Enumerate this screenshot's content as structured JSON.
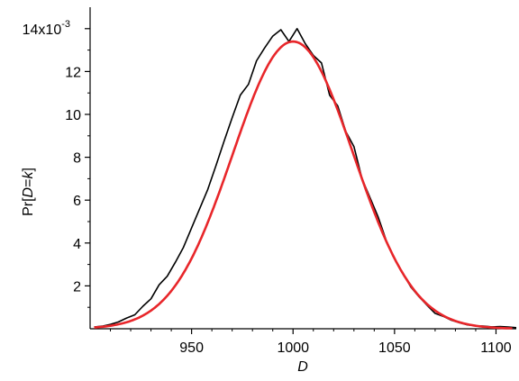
{
  "chart_data": {
    "type": "line",
    "xlabel": "D",
    "ylabel_prefix": "Pr[",
    "ylabel_var": "D",
    "ylabel_mid": "=",
    "ylabel_k": "k",
    "ylabel_suffix": "]",
    "ylim": [
      0,
      0.015
    ],
    "xlim": [
      900,
      1110
    ],
    "x_ticks": [
      950,
      1000,
      1050,
      1100
    ],
    "x_tick_labels": [
      "950",
      "1000",
      "1050",
      "1100"
    ],
    "y_ticks": [
      0.002,
      0.004,
      0.006,
      0.008,
      0.01,
      0.012,
      0.014
    ],
    "y_tick_labels": [
      "2",
      "4",
      "6",
      "8",
      "10",
      "12",
      "14x10"
    ],
    "y_exponent": "-3",
    "grid": false,
    "series": [
      {
        "color": "#000000",
        "style": "noisy empirical distribution",
        "x": [
          902,
          906,
          910,
          914,
          918,
          922,
          926,
          930,
          934,
          938,
          942,
          946,
          950,
          954,
          958,
          962,
          966,
          970,
          974,
          978,
          982,
          986,
          990,
          994,
          998,
          1002,
          1006,
          1010,
          1014,
          1018,
          1022,
          1026,
          1030,
          1034,
          1038,
          1042,
          1046,
          1050,
          1054,
          1058,
          1062,
          1066,
          1070,
          1074,
          1078,
          1082,
          1086,
          1090,
          1094,
          1098,
          1102,
          1106,
          1110
        ],
        "values": [
          8e-05,
          0.00012,
          0.0002,
          0.00032,
          0.0005,
          0.00065,
          0.00105,
          0.0014,
          0.00205,
          0.00245,
          0.0031,
          0.0038,
          0.0047,
          0.0056,
          0.0065,
          0.0076,
          0.00875,
          0.00985,
          0.0109,
          0.0114,
          0.0125,
          0.0131,
          0.01365,
          0.01395,
          0.0134,
          0.014,
          0.0133,
          0.01275,
          0.0124,
          0.0109,
          0.0104,
          0.0092,
          0.0085,
          0.007,
          0.0061,
          0.0052,
          0.0041,
          0.00325,
          0.0026,
          0.00195,
          0.0015,
          0.0011,
          0.00072,
          0.00058,
          0.0004,
          0.00028,
          0.00018,
          0.00014,
          0.00012,
          9e-05,
          0.0001,
          8e-05,
          5e-05
        ]
      },
      {
        "color": "#e8262a",
        "style": "fitted normal curve",
        "mean": 1000,
        "sd": 29.8,
        "peak": 0.0134
      }
    ]
  }
}
